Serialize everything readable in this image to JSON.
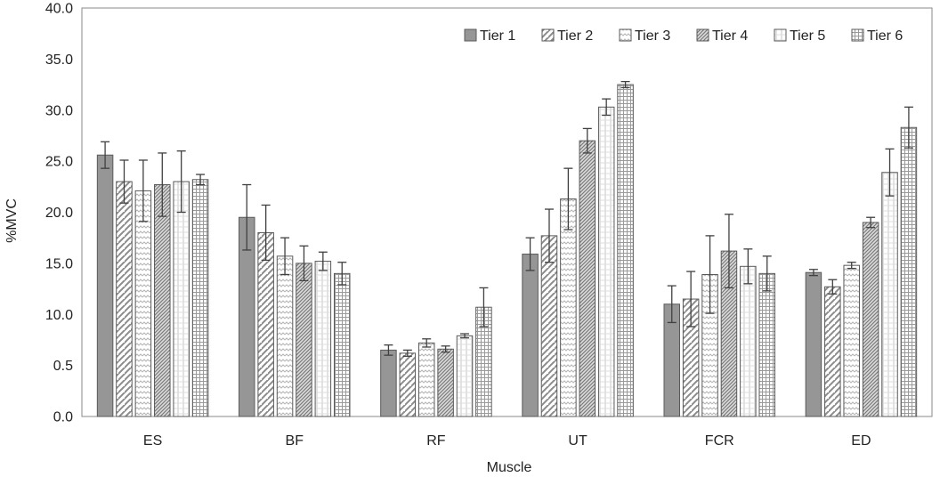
{
  "chart_data": {
    "type": "bar",
    "title": "",
    "xlabel": "Muscle",
    "ylabel": "%MVC",
    "ylim": [
      0,
      40
    ],
    "y_ticks": [
      "0.0",
      "0.5",
      "10.0",
      "15.0",
      "20.0",
      "25.0",
      "30.0",
      "35.0",
      "40.0"
    ],
    "grid": false,
    "legend_position": "top-right",
    "categories": [
      "ES",
      "BF",
      "RF",
      "UT",
      "FCR",
      "ED"
    ],
    "series": [
      {
        "name": "Tier 1",
        "pattern": "solid",
        "color": "#969696",
        "values": [
          25.6,
          19.5,
          6.5,
          15.9,
          11.0,
          14.1
        ],
        "errors": [
          1.3,
          3.2,
          0.5,
          1.6,
          1.8,
          0.3
        ]
      },
      {
        "name": "Tier 2",
        "pattern": "diagonal",
        "color": "#8c8c8c",
        "values": [
          23.0,
          18.0,
          6.2,
          17.7,
          11.5,
          12.7
        ],
        "errors": [
          2.1,
          2.7,
          0.3,
          2.6,
          2.7,
          0.7
        ]
      },
      {
        "name": "Tier 3",
        "pattern": "zigzag",
        "color": "#a0a0a0",
        "values": [
          22.1,
          15.7,
          7.2,
          21.3,
          13.9,
          14.8
        ],
        "errors": [
          3.0,
          1.8,
          0.4,
          3.0,
          3.8,
          0.3
        ]
      },
      {
        "name": "Tier 4",
        "pattern": "dense-diagonal",
        "color": "#7a7a7a",
        "values": [
          22.7,
          15.0,
          6.6,
          27.0,
          16.2,
          19.0
        ],
        "errors": [
          3.1,
          1.7,
          0.3,
          1.2,
          3.6,
          0.5
        ]
      },
      {
        "name": "Tier 5",
        "pattern": "vertical",
        "color": "#a8a8a8",
        "values": [
          23.0,
          15.2,
          7.9,
          30.3,
          14.7,
          23.9
        ],
        "errors": [
          3.0,
          0.9,
          0.2,
          0.8,
          1.7,
          2.3
        ]
      },
      {
        "name": "Tier 6",
        "pattern": "grid",
        "color": "#8a8a8a",
        "values": [
          23.2,
          14.0,
          10.7,
          32.5,
          14.0,
          28.3
        ],
        "errors": [
          0.5,
          1.1,
          1.9,
          0.3,
          1.7,
          2.0
        ]
      }
    ]
  }
}
